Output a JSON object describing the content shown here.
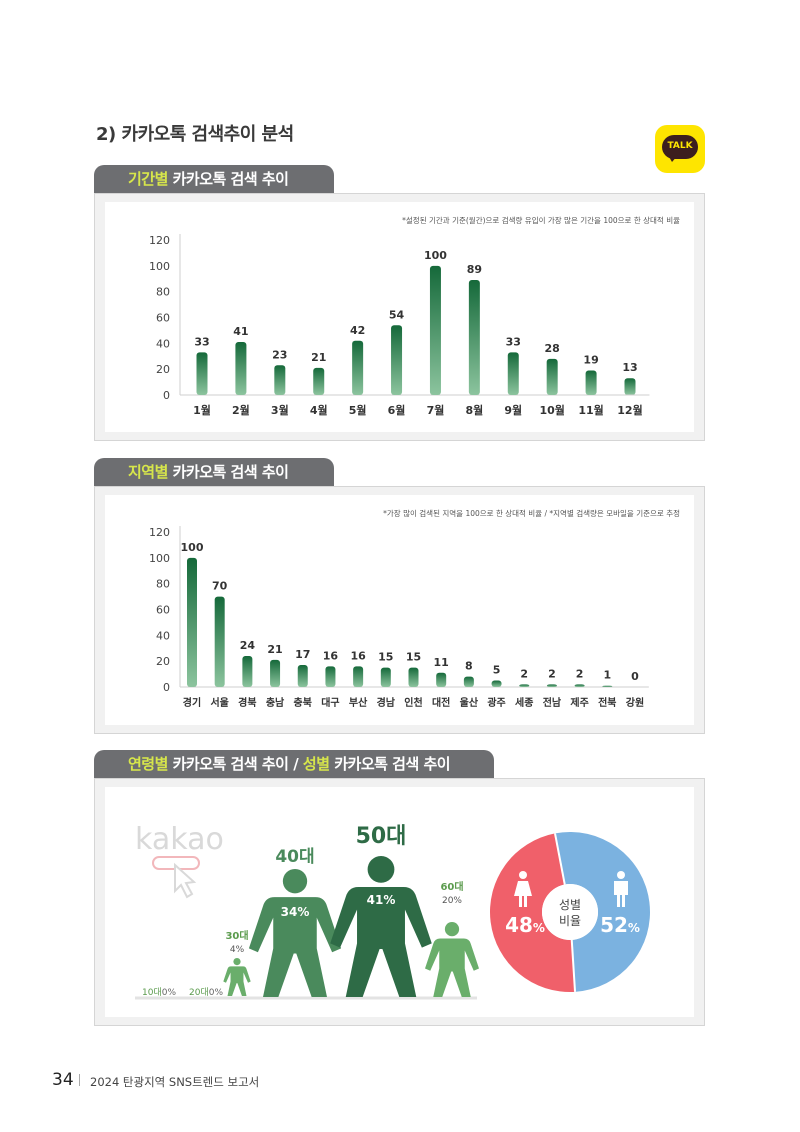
{
  "heading": "2) 카카오톡 검색추이 분석",
  "talk_logo": "TALK",
  "colors": {
    "bar_dark": "#15693A",
    "bar_light": "#8CC49E",
    "female": "#F0606A",
    "male": "#7BB2E0",
    "age_dark": "#2E6B46",
    "age_mid": "#4A8A5C",
    "age_light": "#6AAE6B"
  },
  "monthly": {
    "tab_highlight": "기간별",
    "tab_rest": " 카카오톡 검색 추이",
    "note": "*설정된 기간과 기준(월간)으로 검색량 유입이 가장 많은 기간을 100으로 한 상대적 비율"
  },
  "regional": {
    "tab_highlight": "지역별",
    "tab_rest": " 카카오톡 검색 추이",
    "note": "*가장 많이 검색된 지역을 100으로 한 상대적 비율 / *지역별 검색량은 모바일을 기준으로 추정"
  },
  "demographic": {
    "tab_highlight1": "연령별",
    "tab_rest1": " 카카오톡 검색 추이 / ",
    "tab_highlight2": "성별",
    "tab_rest2": " 카카오톡 검색 추이",
    "kakao_watermark": "kakao",
    "gender_center_line1": "성별",
    "gender_center_line2": "비율"
  },
  "chart_data": [
    {
      "type": "bar",
      "categories": [
        "1월",
        "2월",
        "3월",
        "4월",
        "5월",
        "6월",
        "7월",
        "8월",
        "9월",
        "10월",
        "11월",
        "12월"
      ],
      "values": [
        33,
        41,
        23,
        21,
        42,
        54,
        100,
        89,
        33,
        28,
        19,
        13
      ],
      "ylim": [
        0,
        120
      ],
      "yticks": [
        0,
        20,
        40,
        60,
        80,
        100,
        120
      ]
    },
    {
      "type": "bar",
      "categories": [
        "경기",
        "서울",
        "경북",
        "충남",
        "충북",
        "대구",
        "부산",
        "경남",
        "인천",
        "대전",
        "울산",
        "광주",
        "세종",
        "전남",
        "제주",
        "전북",
        "강원"
      ],
      "values": [
        100,
        70,
        24,
        21,
        17,
        16,
        16,
        15,
        15,
        11,
        8,
        5,
        2,
        2,
        2,
        1,
        0
      ],
      "ylim": [
        0,
        120
      ],
      "yticks": [
        0,
        20,
        40,
        60,
        80,
        100,
        120
      ]
    },
    {
      "type": "bar",
      "categories": [
        "10대",
        "20대",
        "30대",
        "40대",
        "50대",
        "60대"
      ],
      "values": [
        0,
        0,
        4,
        34,
        41,
        20
      ],
      "labels": [
        "0%",
        "0%",
        "4%",
        "34%",
        "41%",
        "20%"
      ]
    },
    {
      "type": "pie",
      "categories": [
        "여성",
        "남성"
      ],
      "values": [
        48,
        52
      ],
      "labels_num": [
        "48",
        "52"
      ],
      "unit": "%"
    }
  ],
  "footer": {
    "page": "34",
    "title": "2024 탄광지역 SNS트렌드 보고서"
  }
}
